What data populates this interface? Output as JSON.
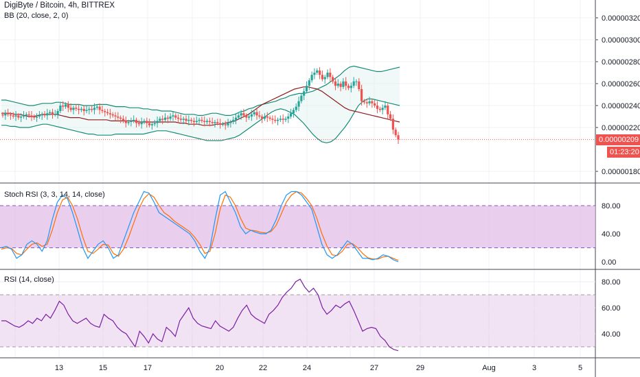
{
  "header": {
    "title": "DigiByte / Bitcoin, 4h, BITTREX",
    "indicator_bb": "BB (20, close, 2, 0)"
  },
  "stoch": {
    "label": "Stoch RSI (3, 3, 14, 14, close)"
  },
  "rsi": {
    "label": "RSI (14, close)"
  },
  "last_price": {
    "value": "0.00000209",
    "countdown": "01:23:20"
  },
  "colors": {
    "up": "#26a69a",
    "down": "#ef5350",
    "bb_band": "#138b72",
    "bb_mid": "#8b1a1a",
    "stoch_k": "#2196f3",
    "stoch_d": "#ff6d00",
    "rsi_line": "#7b1fa2",
    "pane_fill": "#e1bee7"
  },
  "chart_data": [
    {
      "type": "candlestick",
      "title": "DigiByte / Bitcoin, 4h, BITTREX",
      "ylim": [
        1.7e-06,
        3.3e-06
      ],
      "y_ticks": [
        "0.00000320",
        "0.00000300",
        "0.00000280",
        "0.00000260",
        "0.00000240",
        "0.00000220",
        "0.00000180"
      ],
      "x_ticks": [
        "13",
        "15",
        "17",
        "20",
        "22",
        "24",
        "27",
        "29",
        "Aug",
        "3",
        "5"
      ],
      "closes": [
        231,
        233,
        232,
        231,
        230,
        231,
        229,
        230,
        231,
        232,
        231,
        230,
        229,
        230,
        231,
        232,
        231,
        233,
        234,
        232,
        232,
        235,
        240,
        239,
        241,
        238,
        236,
        238,
        237,
        236,
        237,
        235,
        236,
        237,
        236,
        238,
        239,
        236,
        235,
        234,
        233,
        232,
        231,
        230,
        229,
        228,
        226,
        224,
        225,
        226,
        227,
        224,
        223,
        225,
        226,
        224,
        222,
        223,
        224,
        226,
        228,
        227,
        229,
        228,
        230,
        231,
        229,
        228,
        227,
        228,
        226,
        227,
        226,
        225,
        226,
        227,
        226,
        225,
        226,
        225,
        224,
        225,
        224,
        223,
        223,
        222,
        224,
        225,
        227,
        229,
        231,
        233,
        231,
        229,
        230,
        232,
        234,
        231,
        230,
        228,
        230,
        229,
        228,
        227,
        226,
        227,
        228,
        227,
        228,
        230,
        233,
        236,
        239,
        244,
        249,
        253,
        258,
        263,
        268,
        270,
        272,
        268,
        264,
        266,
        270,
        266,
        262,
        258,
        260,
        257,
        262,
        258,
        256,
        258,
        262,
        262,
        255,
        244,
        243,
        242,
        244,
        242,
        240,
        237,
        236,
        238,
        240,
        232,
        228,
        218,
        213,
        209
      ],
      "bb_upper": [
        245,
        245,
        244,
        243,
        242,
        241,
        240,
        240,
        241,
        242,
        242,
        242,
        243,
        243,
        242,
        241,
        241,
        241,
        240,
        240,
        240,
        241,
        241,
        241,
        240,
        239,
        239,
        239,
        238,
        238,
        238,
        237,
        237,
        236,
        236,
        235,
        235,
        235,
        234,
        233,
        232,
        232,
        232,
        231,
        231,
        232,
        233,
        233,
        232,
        231,
        231,
        232,
        234,
        235,
        237,
        238,
        240,
        241,
        242,
        243,
        244,
        246,
        247,
        249,
        250,
        251,
        251,
        252,
        253,
        255,
        257,
        259,
        262,
        265,
        268,
        272,
        275,
        276,
        275,
        274,
        273,
        272,
        271,
        271,
        272,
        273,
        274,
        275
      ],
      "bb_lower": [
        222,
        222,
        221,
        221,
        220,
        220,
        220,
        221,
        222,
        223,
        223,
        222,
        221,
        220,
        219,
        218,
        217,
        216,
        215,
        214,
        214,
        213,
        213,
        213,
        213,
        214,
        214,
        214,
        214,
        214,
        214,
        214,
        215,
        216,
        217,
        217,
        217,
        216,
        215,
        214,
        213,
        212,
        211,
        210,
        209,
        208,
        208,
        208,
        208,
        209,
        210,
        211,
        213,
        216,
        219,
        222,
        225,
        228,
        231,
        234,
        236,
        237,
        236,
        234,
        232,
        228,
        224,
        219,
        214,
        210,
        207,
        206,
        207,
        210,
        215,
        220,
        226,
        233,
        240,
        244,
        246,
        246,
        245,
        244,
        243,
        242,
        241,
        240
      ],
      "bb_mid": [
        233,
        233,
        233,
        232,
        232,
        231,
        230,
        230,
        231,
        232,
        232,
        232,
        232,
        231,
        230,
        229,
        229,
        229,
        228,
        227,
        227,
        227,
        227,
        227,
        226,
        226,
        226,
        226,
        226,
        226,
        225,
        225,
        225,
        225,
        225,
        225,
        225,
        225,
        225,
        224,
        224,
        223,
        223,
        223,
        222,
        222,
        222,
        223,
        223,
        224,
        225,
        226,
        228,
        230,
        232,
        235,
        238,
        241,
        243,
        245,
        247,
        249,
        251,
        253,
        255,
        256,
        257,
        257,
        256,
        255,
        253,
        250,
        247,
        244,
        241,
        238,
        236,
        235,
        234,
        233,
        232,
        231,
        230,
        229,
        228,
        227,
        226,
        225
      ],
      "last_price": "0.00000209"
    },
    {
      "type": "line",
      "title": "Stoch RSI (3, 3, 14, 14, close)",
      "ylim": [
        -10,
        110
      ],
      "y_ticks": [
        "80.00",
        "40.00",
        "0.00"
      ],
      "bands": [
        80,
        20
      ],
      "series": [
        {
          "name": "K",
          "values": [
            20,
            22,
            18,
            5,
            10,
            25,
            30,
            25,
            15,
            30,
            60,
            85,
            95,
            90,
            70,
            45,
            20,
            5,
            15,
            25,
            30,
            20,
            5,
            10,
            30,
            50,
            70,
            85,
            100,
            98,
            85,
            70,
            65,
            60,
            55,
            50,
            45,
            40,
            30,
            15,
            5,
            20,
            60,
            95,
            100,
            85,
            70,
            50,
            40,
            45,
            42,
            40,
            40,
            45,
            60,
            80,
            95,
            100,
            100,
            95,
            85,
            75,
            50,
            25,
            10,
            5,
            10,
            20,
            30,
            25,
            15,
            5,
            5,
            3,
            5,
            10,
            8,
            3,
            0
          ]
        },
        {
          "name": "D",
          "values": [
            18,
            20,
            19,
            12,
            10,
            18,
            25,
            27,
            22,
            25,
            45,
            70,
            88,
            92,
            80,
            60,
            35,
            15,
            12,
            18,
            25,
            24,
            12,
            8,
            18,
            35,
            55,
            75,
            90,
            97,
            92,
            80,
            70,
            65,
            58,
            53,
            48,
            43,
            35,
            25,
            12,
            15,
            40,
            75,
            95,
            92,
            80,
            62,
            48,
            45,
            44,
            42,
            41,
            43,
            52,
            68,
            85,
            95,
            100,
            98,
            90,
            80,
            62,
            40,
            22,
            10,
            9,
            15,
            25,
            26,
            20,
            12,
            6,
            4,
            4,
            7,
            8,
            5,
            2
          ]
        }
      ]
    },
    {
      "type": "line",
      "title": "RSI (14, close)",
      "ylim": [
        25,
        85
      ],
      "y_ticks": [
        "80.00",
        "60.00",
        "40.00"
      ],
      "bands": [
        70,
        30
      ],
      "series": [
        {
          "name": "RSI",
          "values": [
            50,
            50,
            48,
            46,
            45,
            47,
            50,
            48,
            52,
            50,
            55,
            52,
            58,
            65,
            62,
            55,
            50,
            48,
            50,
            52,
            48,
            46,
            45,
            55,
            52,
            50,
            45,
            42,
            40,
            35,
            30,
            42,
            38,
            33,
            40,
            36,
            34,
            45,
            42,
            38,
            50,
            55,
            60,
            52,
            48,
            46,
            45,
            44,
            50,
            46,
            44,
            42,
            45,
            52,
            58,
            62,
            55,
            52,
            50,
            48,
            55,
            58,
            62,
            68,
            72,
            75,
            80,
            82,
            76,
            72,
            75,
            70,
            60,
            55,
            58,
            62,
            60,
            63,
            65,
            58,
            50,
            42,
            44,
            45,
            44,
            38,
            35,
            30,
            28,
            27
          ]
        }
      ]
    }
  ]
}
